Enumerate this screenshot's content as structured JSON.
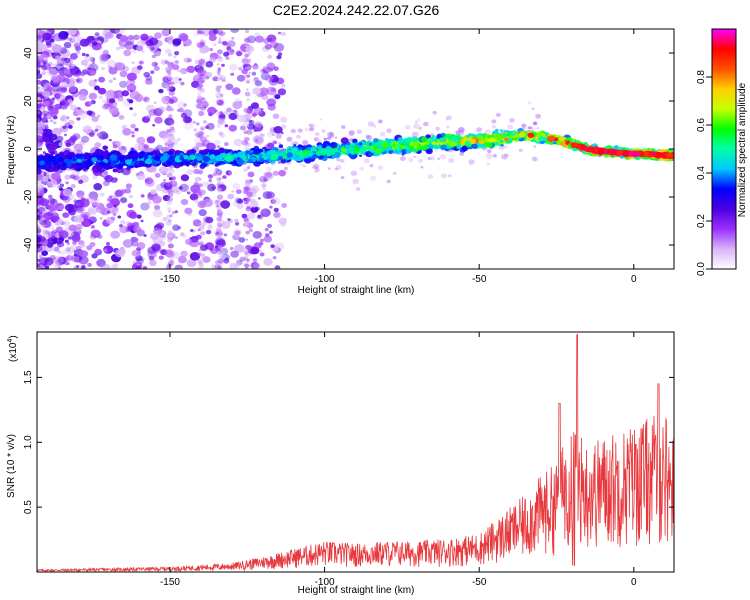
{
  "title": "C2E2.2024.242.22.07.G26",
  "chart_data": [
    {
      "type": "heatmap",
      "xlabel": "Height of straight line (km)",
      "ylabel": "Frequency (Hz)",
      "xlim": [
        -193,
        13
      ],
      "ylim": [
        -50,
        50
      ],
      "xticks": [
        -150,
        -100,
        -50,
        0
      ],
      "xtick_labels": [
        "-150",
        "-100",
        "-50",
        "0"
      ],
      "yticks": [
        -40,
        -20,
        0,
        20,
        40
      ],
      "ytick_labels": [
        "-40",
        "-20",
        "0",
        "20",
        "40"
      ],
      "colorbar": {
        "label": "Normalized spectral amplitude",
        "range": [
          0,
          1
        ],
        "ticks": [
          0.0,
          0.2,
          0.4,
          0.6,
          0.8
        ],
        "tick_labels": [
          "0.0",
          "0.2",
          "0.4",
          "0.6",
          "0.8"
        ],
        "colors": [
          "#ffffff",
          "#d8b4f8",
          "#9b30ff",
          "#4b00e0",
          "#0000ff",
          "#00c8ff",
          "#00ffaa",
          "#00ff00",
          "#c8ff00",
          "#ffd000",
          "#ff5000",
          "#ff0000",
          "#ff00ff"
        ]
      },
      "ridge": {
        "x": [
          -193,
          -180,
          -165,
          -150,
          -140,
          -130,
          -120,
          -110,
          -100,
          -90,
          -80,
          -70,
          -60,
          -50,
          -40,
          -35,
          -30,
          -25,
          -20,
          -15,
          -10,
          -5,
          0,
          5,
          10,
          13
        ],
        "y": [
          -6,
          -5,
          -5,
          -4,
          -4,
          -3.5,
          -3,
          -2,
          -1,
          0,
          1,
          2,
          3,
          3.5,
          5,
          6,
          5,
          4,
          2,
          0,
          -1,
          -1.5,
          -2,
          -2,
          -2.5,
          -3
        ]
      }
    },
    {
      "type": "line",
      "xlabel": "Height of straight line (km)",
      "ylabel": "SNR (10 * v/v)",
      "scale_label": "(x10",
      "scale_exponent": "4",
      "xlim": [
        -193,
        13
      ],
      "ylim": [
        0,
        1.85
      ],
      "xticks": [
        -150,
        -100,
        -50,
        0
      ],
      "xtick_labels": [
        "-150",
        "-100",
        "-50",
        "0"
      ],
      "yticks": [
        0.5,
        1.0,
        1.5
      ],
      "ytick_labels": [
        "0.5",
        "1.0",
        "1.5"
      ],
      "color": "#e8383d",
      "envelope": {
        "x": [
          -193,
          -170,
          -150,
          -130,
          -120,
          -110,
          -100,
          -90,
          -80,
          -70,
          -60,
          -50,
          -45,
          -40,
          -35,
          -30,
          -25,
          -22,
          -20,
          -18,
          -15,
          -10,
          -5,
          0,
          5,
          10,
          13
        ],
        "y": [
          0.02,
          0.03,
          0.04,
          0.07,
          0.12,
          0.18,
          0.24,
          0.22,
          0.24,
          0.24,
          0.26,
          0.3,
          0.4,
          0.5,
          0.6,
          0.75,
          0.85,
          1.05,
          1.25,
          1.1,
          1.0,
          1.05,
          1.1,
          1.15,
          1.2,
          1.25,
          1.05
        ]
      },
      "peaks": [
        {
          "x": -18.3,
          "y": 1.83
        },
        {
          "x": -24,
          "y": 1.3
        },
        {
          "x": 8,
          "y": 1.45
        }
      ]
    }
  ]
}
